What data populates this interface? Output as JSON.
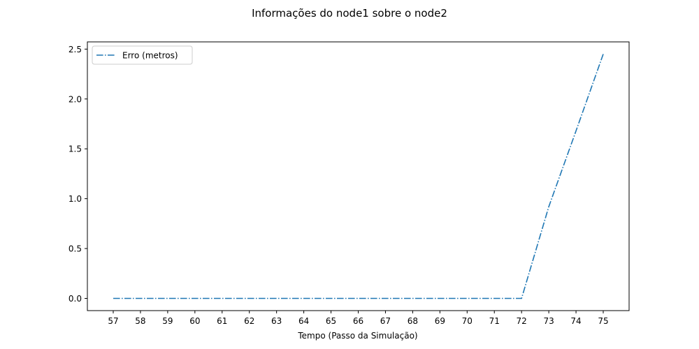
{
  "chart_data": {
    "type": "line",
    "title": "Informações do node1 sobre o node2",
    "xlabel": "Tempo (Passo da Simulação)",
    "ylabel": "",
    "x": [
      57,
      58,
      59,
      60,
      61,
      62,
      63,
      64,
      65,
      66,
      67,
      68,
      69,
      70,
      71,
      72,
      73,
      74,
      75
    ],
    "series": [
      {
        "name": "Erro (metros)",
        "values": [
          0,
          0,
          0,
          0,
          0,
          0,
          0,
          0,
          0,
          0,
          0,
          0,
          0,
          0,
          0,
          0,
          0.92,
          1.68,
          2.45
        ],
        "color": "#1f77b4",
        "line_style": "dashdot"
      }
    ],
    "xticks": [
      "57",
      "58",
      "59",
      "60",
      "61",
      "62",
      "63",
      "64",
      "65",
      "66",
      "67",
      "68",
      "69",
      "70",
      "71",
      "72",
      "73",
      "74",
      "75"
    ],
    "yticks": [
      "0.0",
      "0.5",
      "1.0",
      "1.5",
      "2.0",
      "2.5"
    ],
    "xlim": [
      56.05,
      75.95
    ],
    "ylim": [
      -0.1225,
      2.5725
    ],
    "grid": false,
    "legend": "upper-left"
  }
}
